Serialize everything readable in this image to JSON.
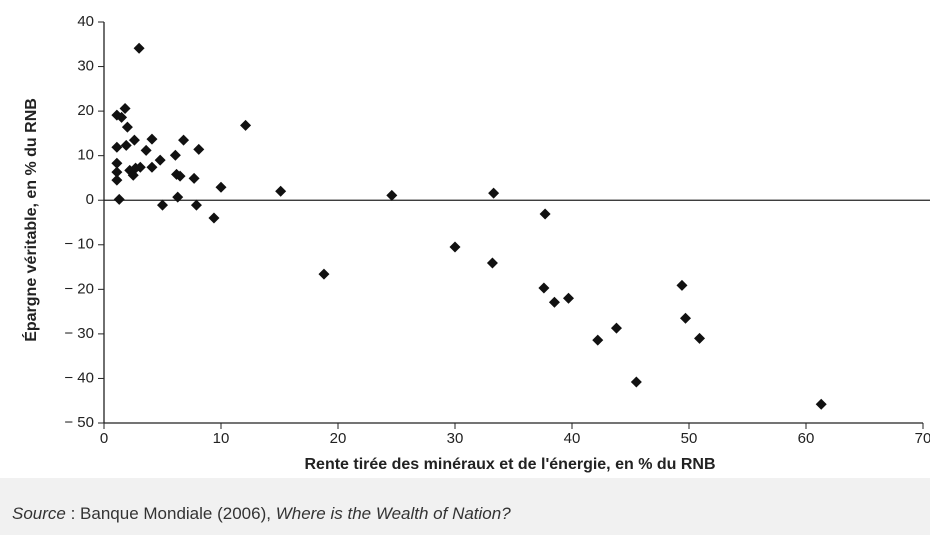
{
  "chart_data": {
    "type": "scatter",
    "xlabel": "Rente tirée des minéraux et de l'énergie, en % du RNB",
    "ylabel": "Épargne véritable, en % du RNB",
    "x": [
      1.1,
      1.5,
      1.8,
      2.0,
      3.0,
      1.1,
      1.9,
      2.6,
      3.6,
      4.1,
      1.1,
      1.1,
      1.1,
      1.3,
      2.2,
      2.5,
      2.7,
      3.1,
      4.1,
      4.8,
      6.1,
      6.8,
      8.1,
      6.2,
      6.5,
      7.7,
      6.3,
      5.0,
      7.9,
      9.4,
      10.0,
      12.1,
      15.1,
      18.8,
      24.6,
      30.0,
      33.3,
      33.2,
      37.7,
      37.6,
      38.5,
      39.7,
      42.2,
      43.8,
      45.5,
      49.4,
      49.7,
      50.9,
      61.3
    ],
    "values": [
      19.1,
      18.6,
      20.6,
      16.4,
      34.1,
      11.9,
      12.3,
      13.5,
      11.2,
      13.7,
      8.3,
      6.3,
      4.5,
      0.2,
      6.7,
      5.6,
      7.2,
      7.4,
      7.4,
      9.0,
      10.1,
      13.5,
      11.4,
      5.8,
      5.4,
      4.9,
      0.7,
      -1.1,
      -1.1,
      -4.0,
      2.9,
      16.8,
      2.0,
      -16.6,
      1.1,
      -10.5,
      1.6,
      -14.1,
      -3.1,
      -19.7,
      -22.9,
      -22.0,
      -31.4,
      -28.7,
      -40.8,
      -19.1,
      -26.5,
      -31.0,
      -45.8
    ],
    "color": "#111111",
    "xlim": [
      0,
      70
    ],
    "xticks": [
      0,
      10,
      20,
      30,
      40,
      50,
      60,
      70
    ],
    "ylim": [
      -50,
      40
    ],
    "yticks": [
      {
        "value": -50,
        "label": "− 50"
      },
      {
        "value": -40,
        "label": "− 40"
      },
      {
        "value": -30,
        "label": "− 30"
      },
      {
        "value": -20,
        "label": "− 20"
      },
      {
        "value": -10,
        "label": "− 10"
      },
      0,
      10,
      20,
      30,
      40
    ],
    "zero_line": true
  },
  "source": {
    "label": "Source",
    "text": " : Banque Mondiale (2006), ",
    "title": "Where is the Wealth of Nation?"
  }
}
